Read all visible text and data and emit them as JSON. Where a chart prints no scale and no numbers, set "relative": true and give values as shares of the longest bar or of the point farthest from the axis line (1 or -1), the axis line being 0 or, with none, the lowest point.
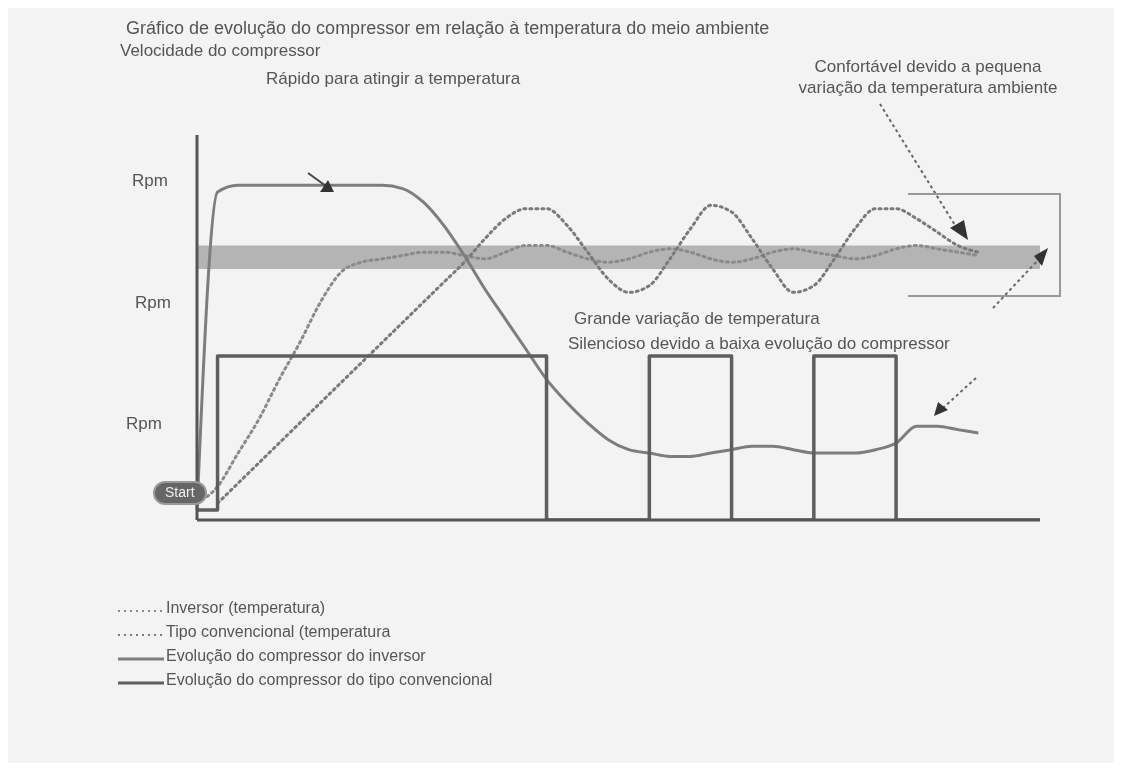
{
  "chart_data": {
    "type": "line",
    "relative": true,
    "title": "Gráfico de evolução do compressor em relação à temperatura do meio ambiente",
    "annotations": [
      "Rápido para atingir a temperatura",
      "Confortável devido a pequena\nvariação da temperatura ambiente",
      "Grande variação de temperatura",
      "Silencioso devido a baixa evolução do compressor",
      "Rpm",
      "Rpm",
      "Rpm",
      "Start",
      "Velocidade do compressor"
    ],
    "categories": [
      null,
      null,
      null,
      null,
      null,
      null,
      null,
      null,
      null,
      null,
      null,
      null,
      null,
      null,
      null,
      null,
      null,
      null,
      null,
      null,
      null,
      null,
      null,
      null,
      null,
      null,
      null,
      null,
      null,
      null,
      null,
      null,
      null,
      null,
      null,
      null,
      null,
      null,
      null,
      null,
      null,
      null
    ],
    "series": [
      {
        "name": "Inversor (temperatura)",
        "color": "#8a8a8a",
        "line_style": "dotted",
        "values": [
          0.05,
          0.1,
          0.2,
          0.3,
          0.42,
          0.53,
          0.65,
          0.74,
          0.77,
          0.78,
          0.79,
          0.8,
          0.8,
          0.79,
          0.78,
          0.8,
          0.82,
          0.82,
          0.8,
          0.78,
          0.77,
          0.78,
          0.8,
          0.81,
          0.8,
          0.78,
          0.77,
          0.78,
          0.8,
          0.81,
          0.8,
          0.79,
          0.78,
          0.79,
          0.81,
          0.82,
          0.81,
          0.8,
          0.79,
          null,
          null,
          null
        ]
      },
      {
        "name": "Tipo convencional (temperatura",
        "color": "#7a7a7a",
        "line_style": "dotted",
        "values": [
          null,
          0.05,
          0.11,
          0.17,
          0.23,
          0.29,
          0.35,
          0.41,
          0.47,
          0.53,
          0.59,
          0.65,
          0.71,
          0.77,
          0.84,
          0.9,
          0.93,
          0.93,
          0.88,
          0.8,
          0.72,
          0.68,
          0.7,
          0.78,
          0.87,
          0.94,
          0.92,
          0.84,
          0.75,
          0.68,
          0.7,
          0.78,
          0.87,
          0.93,
          0.93,
          0.9,
          0.86,
          0.82,
          0.8,
          null,
          null,
          null
        ]
      },
      {
        "name": "Evolução do compressor do inversor",
        "color": "#7d7d7d",
        "line_style": "solid",
        "values": [
          0.03,
          0.98,
          1,
          1,
          1,
          1,
          1,
          1,
          1,
          1,
          0.99,
          0.95,
          0.88,
          0.79,
          0.69,
          0.6,
          0.51,
          0.42,
          0.35,
          0.29,
          0.24,
          0.21,
          0.2,
          0.19,
          0.19,
          0.2,
          0.21,
          0.22,
          0.22,
          0.21,
          0.2,
          0.2,
          0.2,
          0.21,
          0.23,
          0.28,
          0.28,
          0.27,
          0.26,
          null,
          null,
          null
        ]
      },
      {
        "name": "Evolução do compressor do tipo convencional",
        "type": "step",
        "color": "#5e5e5e",
        "line_style": "solid",
        "values": [
          0.03,
          0.49,
          0.49,
          0.49,
          0.49,
          0.49,
          0.49,
          0.49,
          0.49,
          0.49,
          0.49,
          0.49,
          0.49,
          0.49,
          0.49,
          0.49,
          0.49,
          0,
          0,
          0,
          0,
          0,
          0.49,
          0.49,
          0.49,
          0.49,
          0,
          0,
          0,
          0,
          0.49,
          0.49,
          0.49,
          0.49,
          0,
          0,
          0,
          0,
          0,
          0,
          0,
          0
        ]
      }
    ],
    "bands": [
      {
        "axis": "y",
        "from": 0.75,
        "to": 0.82,
        "color": "#a8a8a8"
      }
    ],
    "marker": "none",
    "grid": false,
    "legend": "bottom left"
  }
}
